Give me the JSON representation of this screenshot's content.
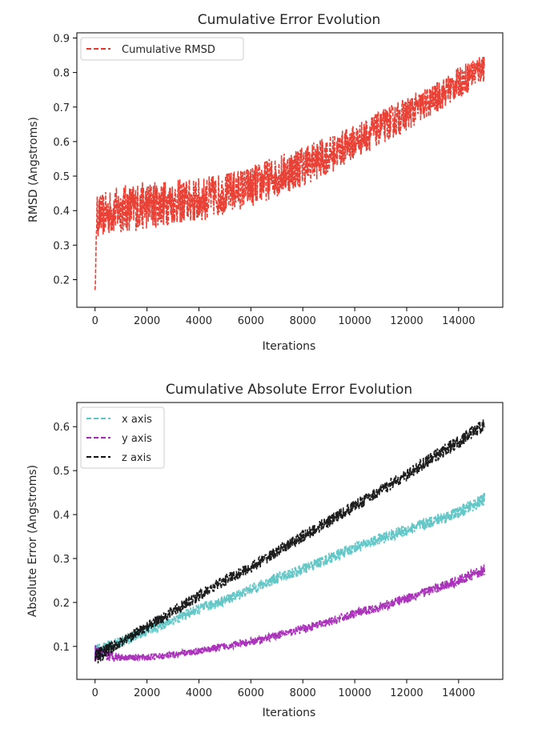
{
  "chart_data": [
    {
      "type": "line",
      "title": "Cumulative Error Evolution",
      "xlabel": "Iterations",
      "ylabel": "RMSD (Angstroms)",
      "xlim": [
        -700,
        15700
      ],
      "ylim": [
        0.12,
        0.915
      ],
      "xticks": [
        0,
        2000,
        4000,
        6000,
        8000,
        10000,
        12000,
        14000
      ],
      "yticks": [
        0.2,
        0.3,
        0.4,
        0.5,
        0.6,
        0.7,
        0.8,
        0.9
      ],
      "legend_position": "top-left",
      "series": [
        {
          "name": "Cumulative RMSD",
          "color": "#e8372a",
          "line_style": "dashed",
          "x": [
            0,
            1000,
            2000,
            3000,
            4000,
            5000,
            6000,
            7000,
            8000,
            9000,
            10000,
            11000,
            12000,
            13000,
            14000,
            15000
          ],
          "y": [
            0.38,
            0.405,
            0.415,
            0.425,
            0.43,
            0.45,
            0.47,
            0.5,
            0.53,
            0.56,
            0.6,
            0.64,
            0.68,
            0.72,
            0.77,
            0.82
          ],
          "spread": [
            0.06,
            0.07,
            0.07,
            0.065,
            0.065,
            0.06,
            0.06,
            0.06,
            0.06,
            0.055,
            0.05,
            0.05,
            0.05,
            0.045,
            0.045,
            0.045
          ],
          "initial_min": 0.16
        }
      ]
    },
    {
      "type": "line",
      "title": "Cumulative Absolute Error Evolution",
      "xlabel": "Iterations",
      "ylabel": "Absolute Error (Angstroms)",
      "xlim": [
        -700,
        15700
      ],
      "ylim": [
        0.025,
        0.655
      ],
      "xticks": [
        0,
        2000,
        4000,
        6000,
        8000,
        10000,
        12000,
        14000
      ],
      "yticks": [
        0.1,
        0.2,
        0.3,
        0.4,
        0.5,
        0.6
      ],
      "legend_position": "top-left",
      "series": [
        {
          "name": "x axis",
          "color": "#5bc4c4",
          "line_style": "dashed",
          "x": [
            0,
            1000,
            2000,
            3000,
            4000,
            5000,
            6000,
            7000,
            8000,
            9000,
            10000,
            11000,
            12000,
            13000,
            14000,
            15000
          ],
          "y": [
            0.085,
            0.11,
            0.135,
            0.16,
            0.185,
            0.205,
            0.23,
            0.255,
            0.275,
            0.3,
            0.325,
            0.345,
            0.365,
            0.385,
            0.405,
            0.435
          ],
          "spread": [
            0.02,
            0.012,
            0.012,
            0.012,
            0.012,
            0.012,
            0.012,
            0.013,
            0.013,
            0.013,
            0.013,
            0.013,
            0.014,
            0.014,
            0.014,
            0.015
          ]
        },
        {
          "name": "y axis",
          "color": "#a628b8",
          "line_style": "dashed",
          "x": [
            0,
            1000,
            2000,
            3000,
            4000,
            5000,
            6000,
            7000,
            8000,
            9000,
            10000,
            11000,
            12000,
            13000,
            14000,
            15000
          ],
          "y": [
            0.085,
            0.075,
            0.075,
            0.08,
            0.09,
            0.1,
            0.11,
            0.125,
            0.14,
            0.155,
            0.175,
            0.19,
            0.21,
            0.23,
            0.25,
            0.275
          ],
          "spread": [
            0.02,
            0.008,
            0.008,
            0.008,
            0.008,
            0.009,
            0.009,
            0.009,
            0.01,
            0.01,
            0.01,
            0.011,
            0.011,
            0.011,
            0.012,
            0.013
          ]
        },
        {
          "name": "z axis",
          "color": "#111111",
          "line_style": "dashed",
          "x": [
            0,
            1000,
            2000,
            3000,
            4000,
            5000,
            6000,
            7000,
            8000,
            9000,
            10000,
            11000,
            12000,
            13000,
            14000,
            15000
          ],
          "y": [
            0.075,
            0.11,
            0.145,
            0.18,
            0.215,
            0.25,
            0.28,
            0.315,
            0.35,
            0.385,
            0.42,
            0.455,
            0.49,
            0.53,
            0.565,
            0.605
          ],
          "spread": [
            0.02,
            0.012,
            0.012,
            0.013,
            0.013,
            0.013,
            0.013,
            0.013,
            0.014,
            0.014,
            0.014,
            0.014,
            0.014,
            0.015,
            0.015,
            0.015
          ]
        }
      ]
    }
  ]
}
